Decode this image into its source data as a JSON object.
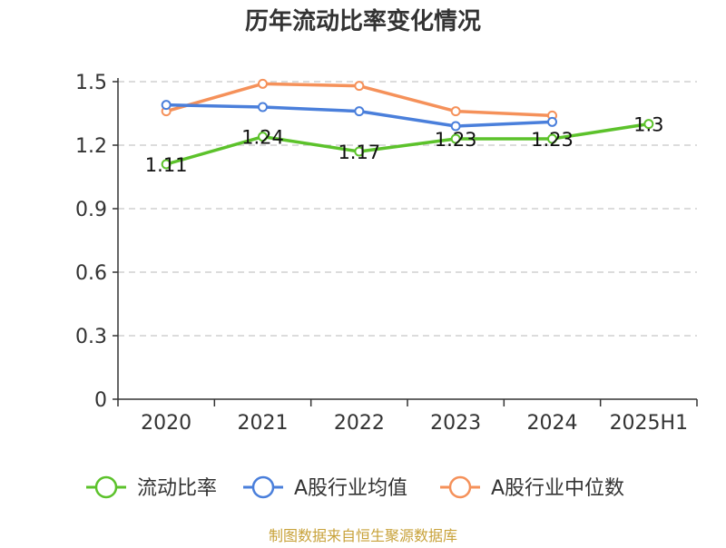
{
  "chart_data": {
    "type": "line",
    "title": "历年流动比率变化情况",
    "categories": [
      "2020",
      "2021",
      "2022",
      "2023",
      "2024",
      "2025H1"
    ],
    "ylim": [
      0,
      1.5
    ],
    "yticks": [
      "0",
      "0.3",
      "0.6",
      "0.9",
      "1.2",
      "1.5"
    ],
    "ytick_values": [
      0,
      0.3,
      0.6,
      0.9,
      1.2,
      1.5
    ],
    "grid": true,
    "legend_position": "bottom",
    "series": [
      {
        "name": "流动比率",
        "color": "#5cc22b",
        "values": [
          1.11,
          1.24,
          1.17,
          1.23,
          1.23,
          1.3
        ],
        "labels": [
          "1.11",
          "1.24",
          "1.17",
          "1.23",
          "1.23",
          "1.3"
        ]
      },
      {
        "name": "A股行业均值",
        "color": "#4a7fdb",
        "values": [
          1.39,
          1.38,
          1.36,
          1.29,
          1.31,
          null
        ]
      },
      {
        "name": "A股行业中位数",
        "color": "#f5915a",
        "values": [
          1.36,
          1.49,
          1.48,
          1.36,
          1.34,
          null
        ]
      }
    ],
    "source": "制图数据来自恒生聚源数据库"
  }
}
